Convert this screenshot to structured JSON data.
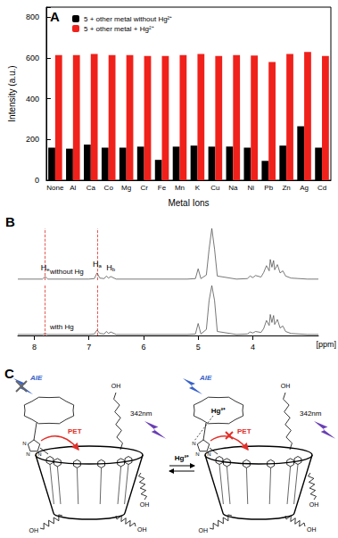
{
  "panel_labels": [
    "A",
    "B",
    "C"
  ],
  "chart_data": [
    {
      "type": "bar",
      "x_label": "Metal Ions",
      "y_label": "Intensity (a.u.)",
      "categories": [
        "None",
        "Al",
        "Ca",
        "Co",
        "Mg",
        "Cr",
        "Fe",
        "Mn",
        "K",
        "Cu",
        "Na",
        "Ni",
        "Pb",
        "Zn",
        "Ag",
        "Cd"
      ],
      "series": [
        {
          "name": "5 + other metal without Hg²⁺",
          "color": "#000000",
          "values": [
            160,
            155,
            175,
            160,
            160,
            165,
            100,
            165,
            170,
            165,
            165,
            160,
            95,
            170,
            265,
            160
          ]
        },
        {
          "name": "5 + other metal + Hg²⁺",
          "color": "#f0211b",
          "values": [
            615,
            615,
            620,
            615,
            615,
            610,
            610,
            615,
            620,
            610,
            615,
            612,
            580,
            620,
            630,
            610
          ]
        }
      ],
      "ylim": [
        0,
        850
      ],
      "yticks": [
        0,
        200,
        400,
        600,
        800
      ],
      "grid": false,
      "legend": "upper left"
    },
    {
      "type": "line",
      "x_label": "[ppm]",
      "x": [
        8.3,
        7.85,
        7.8,
        7.75,
        7.0,
        6.9,
        6.85,
        6.8,
        6.72,
        6.68,
        6.64,
        6.6,
        6.5,
        5.2,
        5.05,
        5.0,
        4.95,
        4.85,
        4.8,
        4.75,
        4.7,
        4.65,
        4.3,
        4.1,
        4.05,
        4.0,
        3.95,
        3.85,
        3.8,
        3.75,
        3.7,
        3.68,
        3.65,
        3.62,
        3.6,
        3.55,
        3.5,
        3.45,
        3.4,
        3.3,
        3.0,
        2.8
      ],
      "xlim": [
        8.3,
        2.8
      ],
      "xticks": [
        8,
        7,
        6,
        5,
        4
      ],
      "ylim": [
        0,
        100
      ],
      "tick_labels": "x",
      "series": [
        {
          "name": "without Hg",
          "color": "#555555",
          "values": [
            2,
            2,
            7,
            2,
            2,
            3,
            14,
            4,
            3,
            8,
            4,
            7,
            2,
            2,
            3,
            22,
            3,
            10,
            60,
            100,
            60,
            8,
            2,
            3,
            8,
            5,
            9,
            6,
            15,
            28,
            18,
            40,
            25,
            38,
            20,
            30,
            14,
            18,
            8,
            4,
            2,
            2
          ]
        },
        {
          "name": "with Hg",
          "color": "#555555",
          "values": [
            2,
            2,
            4,
            2,
            2,
            3,
            11,
            4,
            3,
            8,
            4,
            7,
            2,
            2,
            3,
            24,
            3,
            12,
            70,
            100,
            70,
            8,
            2,
            3,
            7,
            5,
            8,
            6,
            14,
            30,
            20,
            42,
            26,
            40,
            22,
            32,
            15,
            19,
            8,
            4,
            2,
            2
          ]
        }
      ],
      "annotations": [
        {
          "text": "He",
          "x": 7.8,
          "y": 14
        },
        {
          "text": "Ha",
          "x": 6.85,
          "y": 20
        },
        {
          "text": "Hb",
          "x": 6.6,
          "y": 13
        }
      ],
      "reference_lines": [
        7.8,
        6.85
      ]
    }
  ],
  "diagram": {
    "left": {
      "emission": "AIE",
      "transfer": "PET",
      "excitation": "342nm",
      "atoms": [
        "N",
        "N",
        "N"
      ],
      "chain_end": "OH"
    },
    "arrow_label": "Hg²⁺",
    "right": {
      "emission": "AIE",
      "transfer": "PET",
      "excitation": "342nm",
      "bound_ion": "Hg²⁺",
      "atoms": [
        "N",
        "N",
        "N"
      ],
      "chain_end": "OH"
    }
  }
}
